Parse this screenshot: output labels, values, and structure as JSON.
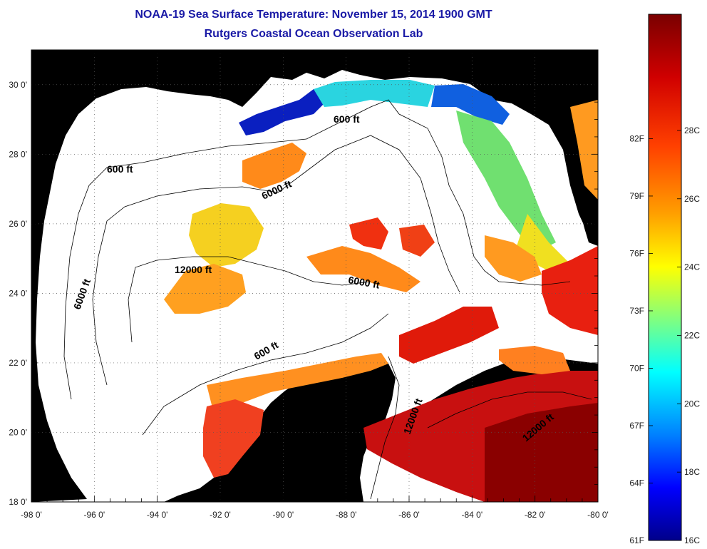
{
  "title": "NOAA-19 Sea Surface Temperature:  November 15, 2014 1900 GMT",
  "subtitle": "Rutgers Coastal Ocean Observation Lab",
  "map": {
    "lon_range": [
      -98,
      -80
    ],
    "lat_range": [
      18,
      31
    ],
    "lon_ticks": [
      "-98 0'",
      "-96 0'",
      "-94 0'",
      "-92 0'",
      "-90 0'",
      "-88 0'",
      "-86 0'",
      "-84 0'",
      "-82 0'",
      "-80 0'"
    ],
    "lat_ticks": [
      "18 0'",
      "20 0'",
      "22 0'",
      "24 0'",
      "26 0'",
      "28 0'",
      "30 0'"
    ],
    "land_color": "#b3b3b3",
    "ocean_nodata_color": "#ffffff",
    "contour_labels": [
      "600 ft",
      "600 ft",
      "6000 ft",
      "6000 ft",
      "12000 ft",
      "6000 ft",
      "600 ft",
      "12000 ft",
      "12000 ft"
    ]
  },
  "colorbar": {
    "fahrenheit_labels": [
      "82F",
      "79F",
      "76F",
      "73F",
      "70F",
      "67F",
      "64F",
      "61F"
    ],
    "celsius_labels": [
      "28C",
      "26C",
      "24C",
      "22C",
      "20C",
      "18C",
      "16C"
    ],
    "colors": [
      "#7a0000",
      "#ff0000",
      "#ff8000",
      "#ffff00",
      "#80ff80",
      "#00ffff",
      "#0080ff",
      "#0000ff",
      "#00008a"
    ]
  }
}
